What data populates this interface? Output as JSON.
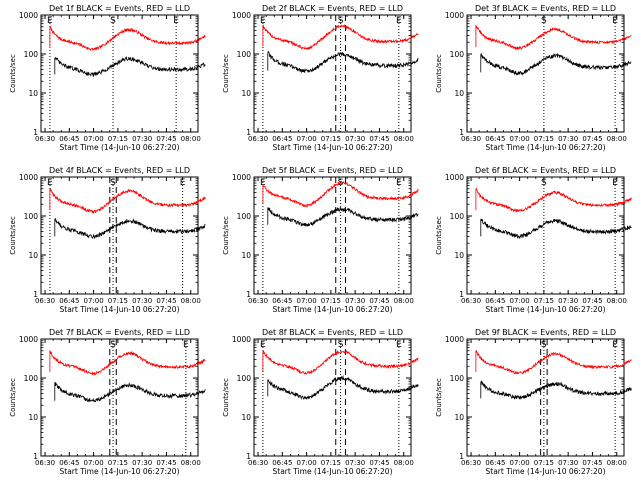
{
  "chart_data": [
    {
      "type": "line",
      "title": "Det 1f BLACK = Events, RED = LLD",
      "xlabel": "Start Time (14-Jun-10 06:27:20)",
      "ylabel": "Counts/sec",
      "yscale": "log",
      "ylim": [
        1,
        1000
      ],
      "xlim_min": [
        0,
        100
      ],
      "x_ticks": [
        "06:30",
        "06:45",
        "07:00",
        "07:15",
        "07:30",
        "07:45",
        "08:00"
      ],
      "y_ticks": [
        "1",
        "10",
        "100",
        "1000"
      ],
      "markers": [
        {
          "label": "E",
          "minute": 3
        },
        {
          "label": "S",
          "minute": 42
        },
        {
          "label": "E",
          "minute": 81
        }
      ],
      "dashed_minutes": [],
      "series": [
        {
          "name": "RED = LLD",
          "color": "#ff0000",
          "start": 3,
          "end": 99,
          "base": 190,
          "peak": 420,
          "first": 500
        },
        {
          "name": "BLACK = Events",
          "color": "#000000",
          "start": 6,
          "end": 99,
          "base": 40,
          "peak": 75,
          "first": 85
        }
      ]
    },
    {
      "type": "line",
      "title": "Det 2f BLACK = Events, RED = LLD",
      "xlabel": "Start Time (14-Jun-10 06:27:20)",
      "ylabel": "Counts/sec",
      "yscale": "log",
      "ylim": [
        1,
        1000
      ],
      "xlim_min": [
        0,
        100
      ],
      "x_ticks": [
        "06:30",
        "06:45",
        "07:00",
        "07:15",
        "07:30",
        "07:45",
        "08:00"
      ],
      "y_ticks": [
        "1",
        "10",
        "100",
        "1000"
      ],
      "markers": [
        {
          "label": "E",
          "minute": 3
        },
        {
          "label": "S",
          "minute": 51
        },
        {
          "label": "E",
          "minute": 87
        }
      ],
      "dashed_minutes": [
        48,
        54
      ],
      "series": [
        {
          "name": "RED = LLD",
          "color": "#ff0000",
          "start": 3,
          "end": 99,
          "base": 210,
          "peak": 520,
          "first": 550
        },
        {
          "name": "BLACK = Events",
          "color": "#000000",
          "start": 6,
          "end": 99,
          "base": 50,
          "peak": 100,
          "first": 110
        }
      ]
    },
    {
      "type": "line",
      "title": "Det 3f BLACK = Events, RED = LLD",
      "xlabel": "Start Time (14-Jun-10 06:27:20)",
      "ylabel": "Counts/sec",
      "yscale": "log",
      "ylim": [
        1,
        1000
      ],
      "xlim_min": [
        0,
        100
      ],
      "x_ticks": [
        "06:30",
        "06:45",
        "07:00",
        "07:15",
        "07:30",
        "07:45",
        "08:00"
      ],
      "y_ticks": [
        "1",
        "10",
        "100",
        "1000"
      ],
      "markers": [
        {
          "label": "S",
          "minute": 45
        },
        {
          "label": "E",
          "minute": 89
        }
      ],
      "dashed_minutes": [],
      "series": [
        {
          "name": "RED = LLD",
          "color": "#ff0000",
          "start": 3,
          "end": 99,
          "base": 200,
          "peak": 430,
          "first": 550
        },
        {
          "name": "BLACK = Events",
          "color": "#000000",
          "start": 6,
          "end": 99,
          "base": 45,
          "peak": 90,
          "first": 100
        }
      ]
    },
    {
      "type": "line",
      "title": "Det 4f BLACK = Events, RED = LLD",
      "xlabel": "Start Time (14-Jun-10 06:27:20)",
      "ylabel": "Counts/sec",
      "yscale": "log",
      "ylim": [
        1,
        1000
      ],
      "xlim_min": [
        0,
        100
      ],
      "x_ticks": [
        "06:30",
        "06:45",
        "07:00",
        "07:15",
        "07:30",
        "07:45",
        "08:00"
      ],
      "y_ticks": [
        "1",
        "10",
        "100",
        "1000"
      ],
      "markers": [
        {
          "label": "E",
          "minute": 3
        },
        {
          "label": "S",
          "minute": 42
        },
        {
          "label": "E",
          "minute": 85
        }
      ],
      "dashed_minutes": [
        40,
        44
      ],
      "series": [
        {
          "name": "RED = LLD",
          "color": "#ff0000",
          "start": 3,
          "end": 99,
          "base": 190,
          "peak": 440,
          "first": 500
        },
        {
          "name": "BLACK = Events",
          "color": "#000000",
          "start": 6,
          "end": 99,
          "base": 40,
          "peak": 75,
          "first": 85
        }
      ]
    },
    {
      "type": "line",
      "title": "Det 5f BLACK = Events, RED = LLD",
      "xlabel": "Start Time (14-Jun-10 06:27:20)",
      "ylabel": "Counts/sec",
      "yscale": "log",
      "ylim": [
        1,
        1000
      ],
      "xlim_min": [
        0,
        100
      ],
      "x_ticks": [
        "06:30",
        "06:45",
        "07:00",
        "07:15",
        "07:30",
        "07:45",
        "08:00"
      ],
      "y_ticks": [
        "1",
        "10",
        "100",
        "1000"
      ],
      "markers": [
        {
          "label": "E",
          "minute": 3
        },
        {
          "label": "S",
          "minute": 51
        },
        {
          "label": "E",
          "minute": 87
        }
      ],
      "dashed_minutes": [
        48,
        54
      ],
      "series": [
        {
          "name": "RED = LLD",
          "color": "#ff0000",
          "start": 3,
          "end": 99,
          "base": 280,
          "peak": 700,
          "first": 650
        },
        {
          "name": "BLACK = Events",
          "color": "#000000",
          "start": 6,
          "end": 99,
          "base": 80,
          "peak": 150,
          "first": 170
        }
      ]
    },
    {
      "type": "line",
      "title": "Det 6f BLACK = Events, RED = LLD",
      "xlabel": "Start Time (14-Jun-10 06:27:20)",
      "ylabel": "Counts/sec",
      "yscale": "log",
      "ylim": [
        1,
        1000
      ],
      "xlim_min": [
        0,
        100
      ],
      "x_ticks": [
        "06:30",
        "06:45",
        "07:00",
        "07:15",
        "07:30",
        "07:45",
        "08:00"
      ],
      "y_ticks": [
        "1",
        "10",
        "100",
        "1000"
      ],
      "markers": [
        {
          "label": "S",
          "minute": 45
        },
        {
          "label": "E",
          "minute": 89
        }
      ],
      "dashed_minutes": [],
      "series": [
        {
          "name": "RED = LLD",
          "color": "#ff0000",
          "start": 3,
          "end": 99,
          "base": 190,
          "peak": 400,
          "first": 500
        },
        {
          "name": "BLACK = Events",
          "color": "#000000",
          "start": 6,
          "end": 99,
          "base": 40,
          "peak": 75,
          "first": 85
        }
      ]
    },
    {
      "type": "line",
      "title": "Det 7f BLACK = Events, RED = LLD",
      "xlabel": "Start Time (14-Jun-10 06:27:20)",
      "ylabel": "Counts/sec",
      "yscale": "log",
      "ylim": [
        1,
        1000
      ],
      "xlim_min": [
        0,
        100
      ],
      "x_ticks": [
        "06:30",
        "06:45",
        "07:00",
        "07:15",
        "07:30",
        "07:45",
        "08:00"
      ],
      "y_ticks": [
        "1",
        "10",
        "100",
        "1000"
      ],
      "markers": [
        {
          "label": "S",
          "minute": 42
        },
        {
          "label": "E",
          "minute": 87
        }
      ],
      "dashed_minutes": [
        40,
        44
      ],
      "series": [
        {
          "name": "RED = LLD",
          "color": "#ff0000",
          "start": 3,
          "end": 99,
          "base": 190,
          "peak": 430,
          "first": 500
        },
        {
          "name": "BLACK = Events",
          "color": "#000000",
          "start": 6,
          "end": 99,
          "base": 35,
          "peak": 65,
          "first": 75
        }
      ]
    },
    {
      "type": "line",
      "title": "Det 8f BLACK = Events, RED = LLD",
      "xlabel": "Start Time (14-Jun-10 06:27:20)",
      "ylabel": "Counts/sec",
      "yscale": "log",
      "ylim": [
        1,
        1000
      ],
      "xlim_min": [
        0,
        100
      ],
      "x_ticks": [
        "06:30",
        "06:45",
        "07:00",
        "07:15",
        "07:30",
        "07:45",
        "08:00"
      ],
      "y_ticks": [
        "1",
        "10",
        "100",
        "1000"
      ],
      "markers": [
        {
          "label": "E",
          "minute": 3
        },
        {
          "label": "S",
          "minute": 51
        },
        {
          "label": "E",
          "minute": 87
        }
      ],
      "dashed_minutes": [
        48,
        54
      ],
      "series": [
        {
          "name": "RED = LLD",
          "color": "#ff0000",
          "start": 3,
          "end": 99,
          "base": 200,
          "peak": 480,
          "first": 520
        },
        {
          "name": "BLACK = Events",
          "color": "#000000",
          "start": 6,
          "end": 99,
          "base": 45,
          "peak": 100,
          "first": 90
        }
      ]
    },
    {
      "type": "line",
      "title": "Det 9f BLACK = Events, RED = LLD",
      "xlabel": "Start Time (14-Jun-10 06:27:20)",
      "ylabel": "Counts/sec",
      "yscale": "log",
      "ylim": [
        1,
        1000
      ],
      "xlim_min": [
        0,
        100
      ],
      "x_ticks": [
        "06:30",
        "06:45",
        "07:00",
        "07:15",
        "07:30",
        "07:45",
        "08:00"
      ],
      "y_ticks": [
        "1",
        "10",
        "100",
        "1000"
      ],
      "markers": [
        {
          "label": "S",
          "minute": 45
        },
        {
          "label": "E",
          "minute": 89
        }
      ],
      "dashed_minutes": [
        43,
        47
      ],
      "series": [
        {
          "name": "RED = LLD",
          "color": "#ff0000",
          "start": 3,
          "end": 99,
          "base": 190,
          "peak": 420,
          "first": 500
        },
        {
          "name": "BLACK = Events",
          "color": "#000000",
          "start": 6,
          "end": 99,
          "base": 40,
          "peak": 70,
          "first": 80
        }
      ]
    }
  ]
}
